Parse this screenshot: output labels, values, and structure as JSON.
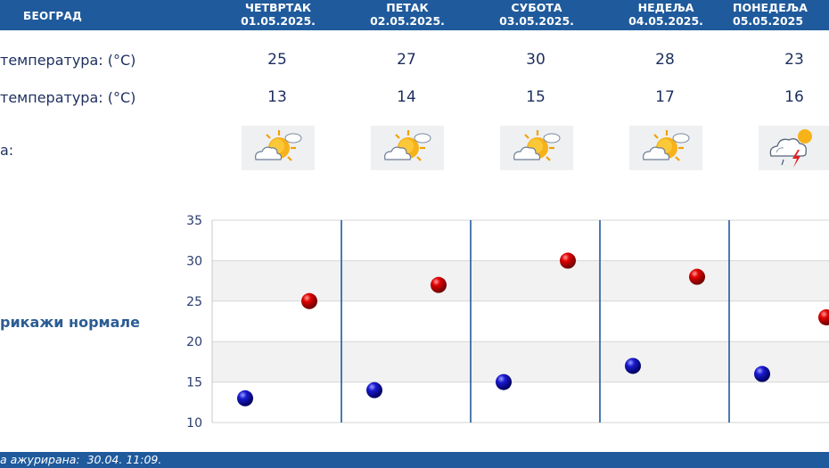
{
  "header": {
    "city": "БЕОГРАД",
    "days": [
      {
        "name": "ЧЕТВРТАК",
        "date": "01.05.2025."
      },
      {
        "name": "ПЕТАК",
        "date": "02.05.2025."
      },
      {
        "name": "СУБОТА",
        "date": "03.05.2025."
      },
      {
        "name": "НЕДЕЉА",
        "date": "04.05.2025."
      },
      {
        "name": "ПОНЕДЕЉА",
        "date": "05.05.2025"
      }
    ]
  },
  "rows": {
    "max_label": "температура: (°C)",
    "min_label": "температура: (°C)",
    "icon_label": "а:",
    "max_values": [
      "25",
      "27",
      "30",
      "28",
      "23"
    ],
    "min_values": [
      "13",
      "14",
      "15",
      "17",
      "16"
    ],
    "icons": [
      "partly-sunny-icon",
      "partly-sunny-icon",
      "partly-sunny-icon",
      "partly-sunny-icon",
      "thunderstorm-icon"
    ]
  },
  "normals_label": "рикажи нормале",
  "footer": {
    "updated": "а ажурирана:  30.04. 11:09."
  },
  "colors": {
    "header": "#1f5a9c",
    "max_marker": "#cc0000",
    "min_marker": "#1010c0",
    "divider": "#1f5a9c"
  },
  "chart_data": {
    "type": "scatter",
    "categories": [
      "01.05.2025.",
      "02.05.2025.",
      "03.05.2025.",
      "04.05.2025.",
      "05.05.2025"
    ],
    "series": [
      {
        "values": [
          25,
          27,
          30,
          28,
          23
        ],
        "color": "#cc0000"
      },
      {
        "values": [
          13,
          14,
          15,
          17,
          16
        ],
        "color": "#1010c0"
      }
    ],
    "ylim": [
      10,
      35
    ],
    "yticks": [
      "10",
      "15",
      "20",
      "25",
      "30",
      "35"
    ],
    "grid": true
  }
}
